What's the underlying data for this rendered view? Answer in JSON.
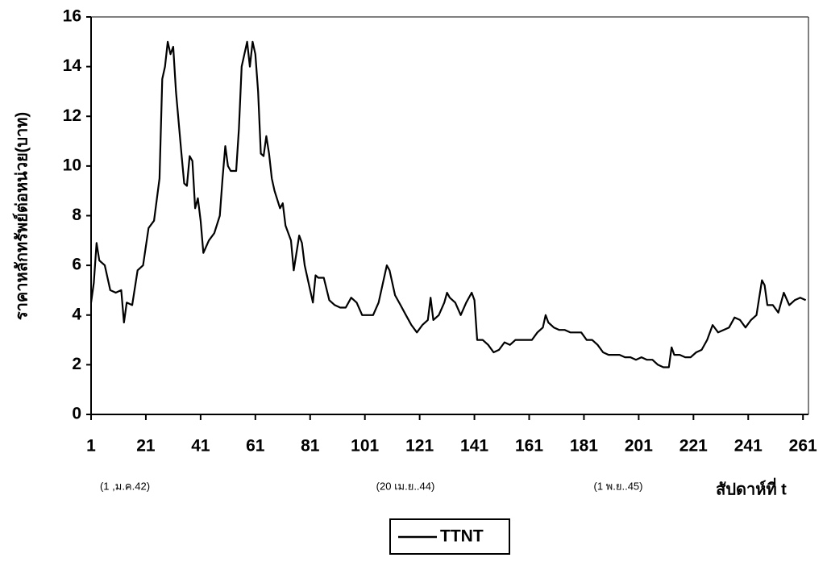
{
  "chart_data": {
    "type": "line",
    "y_label": "ราคาหลักทรัพย์ต่อหน่วย(บาท)",
    "x_label": "สัปดาห์ที่ t",
    "annotations": [
      "(1 ,ม.ค.42)",
      "(20 เม.ย..44)",
      "(1 พ.ย..45)"
    ],
    "x": [
      1,
      2,
      3,
      4,
      6,
      8,
      10,
      12,
      13,
      14,
      16,
      18,
      20,
      22,
      24,
      26,
      27,
      28,
      29,
      30,
      31,
      32,
      34,
      35,
      36,
      37,
      38,
      39,
      40,
      41,
      42,
      44,
      46,
      48,
      49,
      50,
      51,
      52,
      54,
      55,
      56,
      57,
      58,
      59,
      60,
      61,
      62,
      63,
      64,
      65,
      66,
      67,
      68,
      70,
      71,
      72,
      74,
      75,
      76,
      77,
      78,
      79,
      80,
      82,
      83,
      84,
      86,
      88,
      90,
      92,
      94,
      96,
      98,
      100,
      102,
      104,
      106,
      108,
      109,
      110,
      112,
      114,
      116,
      118,
      120,
      122,
      124,
      125,
      126,
      128,
      130,
      131,
      132,
      134,
      136,
      138,
      140,
      141,
      142,
      144,
      146,
      148,
      150,
      152,
      154,
      156,
      158,
      160,
      162,
      164,
      166,
      167,
      168,
      170,
      172,
      174,
      176,
      178,
      180,
      182,
      184,
      186,
      188,
      190,
      192,
      194,
      196,
      198,
      200,
      202,
      204,
      206,
      208,
      210,
      212,
      213,
      214,
      216,
      218,
      220,
      222,
      224,
      226,
      228,
      230,
      232,
      234,
      236,
      238,
      240,
      242,
      244,
      246,
      247,
      248,
      250,
      252,
      254,
      256,
      258,
      260,
      262
    ],
    "series": [
      {
        "name": "TTNT",
        "color": "#000000",
        "values": [
          4.5,
          5.3,
          6.9,
          6.2,
          6.0,
          5.0,
          4.9,
          5.0,
          3.7,
          4.5,
          4.4,
          5.8,
          6.0,
          7.5,
          7.8,
          9.5,
          13.5,
          14.0,
          15.0,
          14.5,
          14.8,
          13.0,
          10.5,
          9.3,
          9.2,
          10.4,
          10.2,
          8.3,
          8.7,
          7.8,
          6.5,
          7.0,
          7.3,
          8.0,
          9.5,
          10.8,
          10.0,
          9.8,
          9.8,
          11.5,
          14.0,
          14.5,
          15.0,
          14.0,
          15.0,
          14.5,
          13.0,
          10.5,
          10.4,
          11.2,
          10.5,
          9.5,
          9.0,
          8.3,
          8.5,
          7.6,
          7.0,
          5.8,
          6.5,
          7.2,
          6.9,
          6.0,
          5.5,
          4.5,
          5.6,
          5.5,
          5.5,
          4.6,
          4.4,
          4.3,
          4.3,
          4.7,
          4.5,
          4.0,
          4.0,
          4.0,
          4.5,
          5.5,
          6.0,
          5.8,
          4.8,
          4.4,
          4.0,
          3.6,
          3.3,
          3.6,
          3.8,
          4.7,
          3.8,
          4.0,
          4.5,
          4.9,
          4.7,
          4.5,
          4.0,
          4.5,
          4.9,
          4.6,
          3.0,
          3.0,
          2.8,
          2.5,
          2.6,
          2.9,
          2.8,
          3.0,
          3.0,
          3.0,
          3.0,
          3.3,
          3.5,
          4.0,
          3.7,
          3.5,
          3.4,
          3.4,
          3.3,
          3.3,
          3.3,
          3.0,
          3.0,
          2.8,
          2.5,
          2.4,
          2.4,
          2.4,
          2.3,
          2.3,
          2.2,
          2.3,
          2.2,
          2.2,
          2.0,
          1.9,
          1.9,
          2.7,
          2.4,
          2.4,
          2.3,
          2.3,
          2.5,
          2.6,
          3.0,
          3.6,
          3.3,
          3.4,
          3.5,
          3.9,
          3.8,
          3.5,
          3.8,
          4.0,
          5.4,
          5.2,
          4.4,
          4.4,
          4.1,
          4.9,
          4.4,
          4.6,
          4.7,
          4.6
        ]
      }
    ],
    "xlim": [
      1,
      263
    ],
    "xticks": [
      1,
      21,
      41,
      61,
      81,
      101,
      121,
      141,
      161,
      181,
      201,
      221,
      241,
      261
    ],
    "ylim": [
      0,
      16
    ],
    "yticks": [
      0,
      2,
      4,
      6,
      8,
      10,
      12,
      14,
      16
    ],
    "grid": false,
    "legend": "bottom"
  }
}
